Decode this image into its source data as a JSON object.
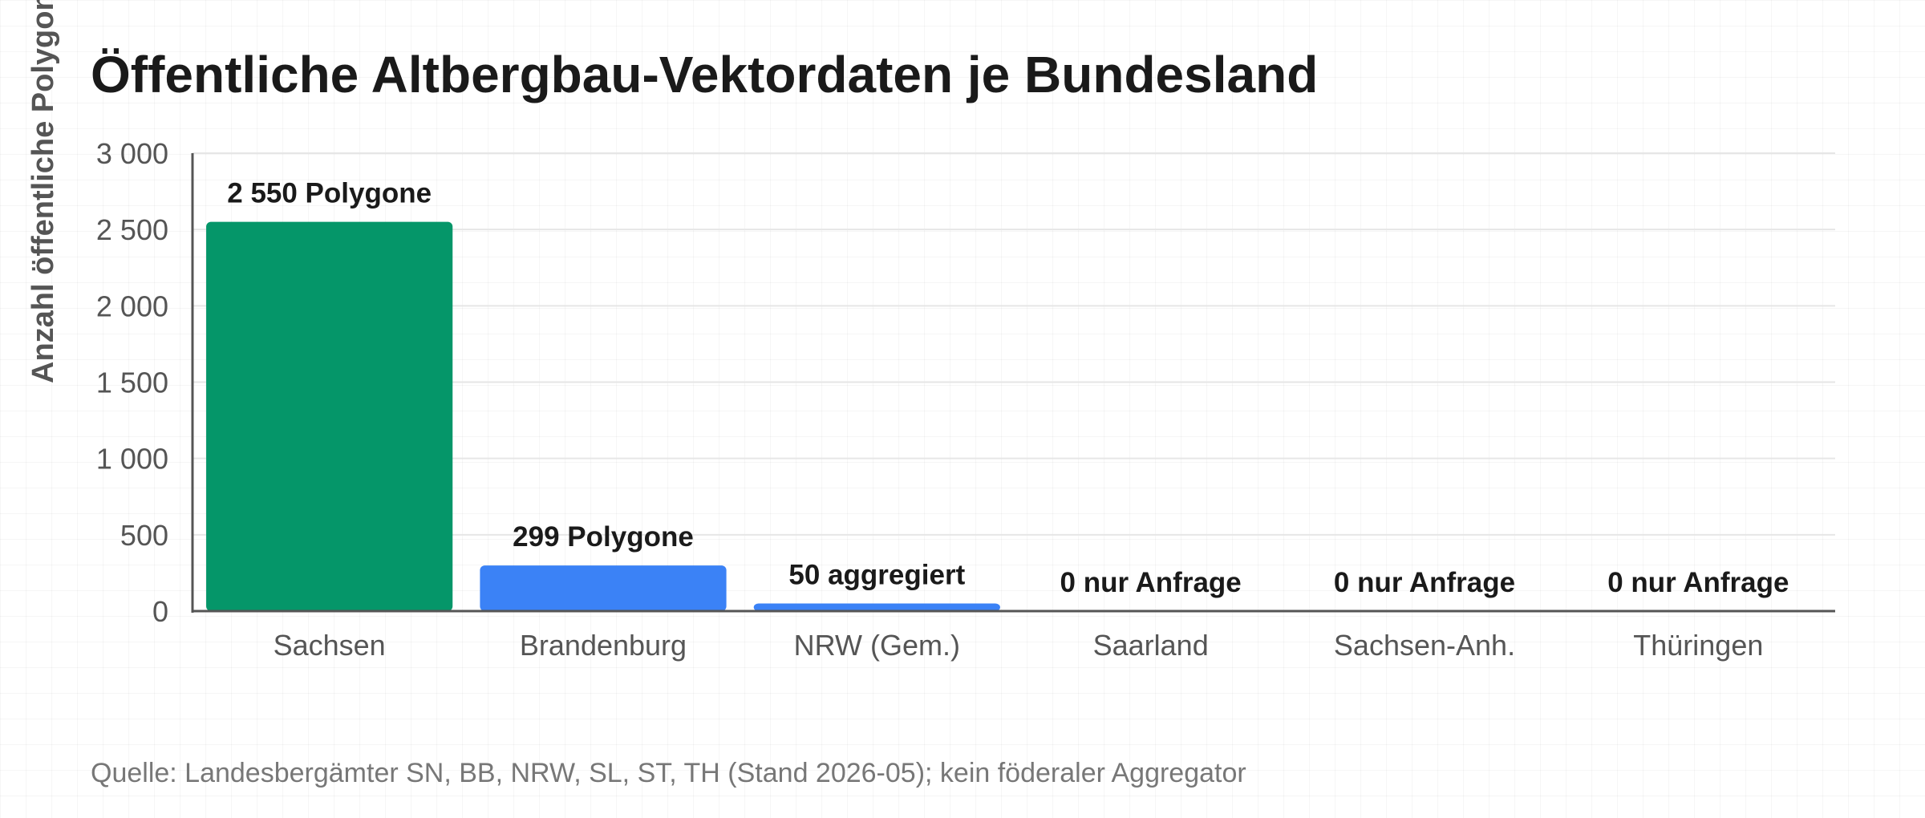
{
  "chart_data": {
    "type": "bar",
    "title": "Öffentliche Altbergbau-Vektordaten je Bundesland",
    "xlabel": "",
    "ylabel": "Anzahl öffentliche Polygone",
    "ylim": [
      0,
      3000
    ],
    "yticks": [
      0,
      500,
      1000,
      1500,
      2000,
      2500,
      3000
    ],
    "ytick_labels": [
      "0",
      "500",
      "1 000",
      "1 500",
      "2 000",
      "2 500",
      "3 000"
    ],
    "categories": [
      "Sachsen",
      "Brandenburg",
      "NRW (Gem.)",
      "Saarland",
      "Sachsen-Anh.",
      "Thüringen"
    ],
    "values": [
      2550,
      299,
      50,
      0,
      0,
      0
    ],
    "data_labels": [
      "2 550 Polygone",
      "299 Polygone",
      "50 aggregiert",
      "0 nur Anfrage",
      "0 nur Anfrage",
      "0 nur Anfrage"
    ],
    "bar_colors": [
      "#059669",
      "#3b82f6",
      "#3b82f6",
      "#3b82f6",
      "#3b82f6",
      "#3b82f6"
    ],
    "grid": true,
    "legend": "none"
  },
  "source_note": "Quelle: Landesbergämter SN, BB, NRW, SL, ST, TH (Stand 2026-05); kein föderaler Aggregator"
}
